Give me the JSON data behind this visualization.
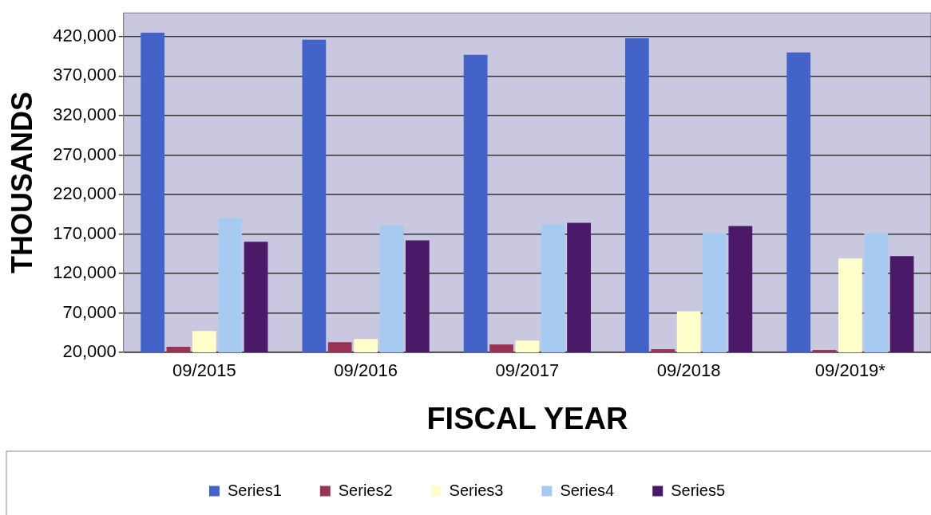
{
  "chart_data": {
    "type": "bar",
    "xlabel": "FISCAL YEAR",
    "ylabel": "THOUSANDS",
    "categories": [
      "09/2015",
      "09/2016",
      "09/2017",
      "09/2018",
      "09/2019*"
    ],
    "series": [
      {
        "name": "Series1",
        "color": "#4463c8",
        "values": [
          425000,
          416000,
          397000,
          418000,
          400000
        ]
      },
      {
        "name": "Series2",
        "color": "#993355",
        "values": [
          27000,
          33000,
          30000,
          24000,
          23000
        ]
      },
      {
        "name": "Series3",
        "color": "#ffffcc",
        "values": [
          47000,
          37000,
          35000,
          72000,
          139000
        ]
      },
      {
        "name": "Series4",
        "color": "#a6caf0",
        "values": [
          190000,
          181000,
          182000,
          171000,
          171000
        ]
      },
      {
        "name": "Series5",
        "color": "#4a1a68",
        "values": [
          160000,
          162000,
          184000,
          180000,
          142000
        ]
      }
    ],
    "ylim": [
      20000,
      450000
    ],
    "yticks": [
      {
        "value": 20000,
        "label": "20,000"
      },
      {
        "value": 70000,
        "label": "70,000"
      },
      {
        "value": 120000,
        "label": "120,000"
      },
      {
        "value": 170000,
        "label": "170,000"
      },
      {
        "value": 220000,
        "label": "220,000"
      },
      {
        "value": 270000,
        "label": "270,000"
      },
      {
        "value": 320000,
        "label": "320,000"
      },
      {
        "value": 370000,
        "label": "370,000"
      },
      {
        "value": 420000,
        "label": "420,000"
      }
    ],
    "grid": "y",
    "legend": "bottom"
  }
}
